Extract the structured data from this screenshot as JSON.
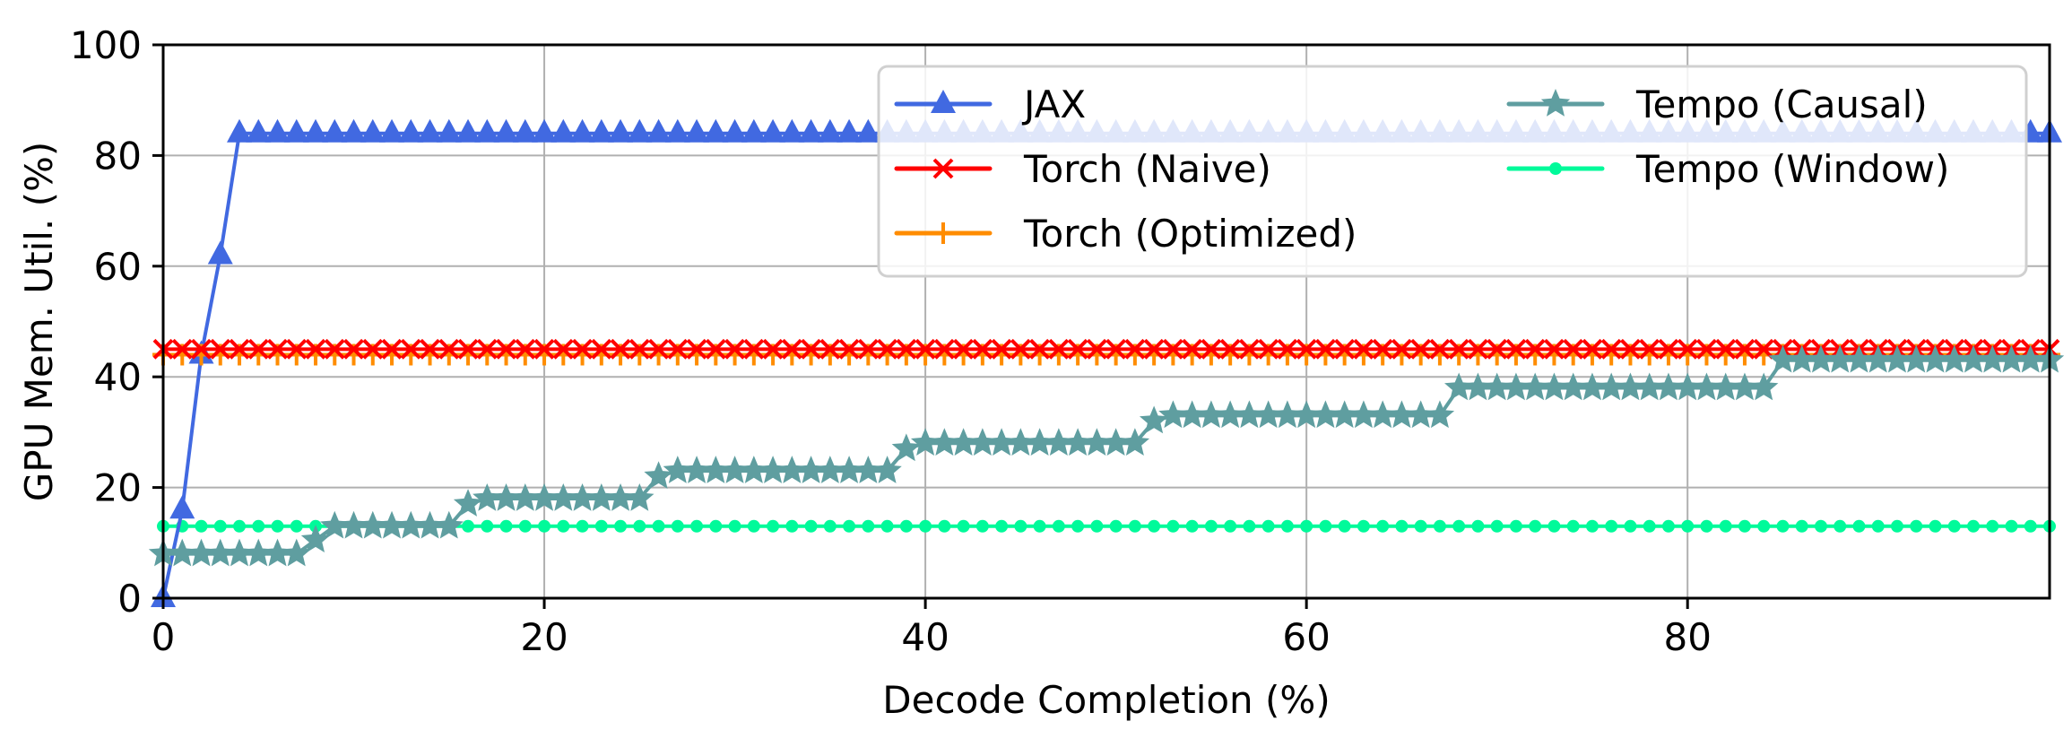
{
  "chart_data": {
    "type": "line",
    "title": "",
    "xlabel": "Decode Completion (%)",
    "ylabel": "GPU Mem. Util. (%)",
    "xlim": [
      0,
      99
    ],
    "ylim": [
      0,
      100
    ],
    "x_ticks": [
      0,
      20,
      40,
      60,
      80
    ],
    "y_ticks": [
      0,
      20,
      40,
      60,
      80,
      100
    ],
    "grid": true,
    "legend": {
      "placement": "top-right",
      "columns": 2
    },
    "series": [
      {
        "name": "JAX",
        "color": "#4169e1",
        "marker": "triangle-up",
        "points": [
          [
            0,
            0
          ],
          [
            1,
            16
          ],
          [
            2,
            44
          ],
          [
            3,
            62
          ],
          [
            4,
            84
          ],
          [
            99,
            84
          ]
        ],
        "marker_step": 1
      },
      {
        "name": "Torch (Naive)",
        "color": "#ff0000",
        "marker": "x",
        "points": [
          [
            0,
            45
          ],
          [
            99,
            45
          ]
        ],
        "marker_step": 1
      },
      {
        "name": "Torch (Optimized)",
        "color": "#ff8c00",
        "marker": "plus",
        "points": [
          [
            0,
            44
          ],
          [
            99,
            44
          ]
        ],
        "marker_step": 1
      },
      {
        "name": "Tempo (Causal)",
        "color": "#5f9ea0",
        "marker": "star",
        "points": [
          [
            0,
            8
          ],
          [
            7,
            8
          ],
          [
            9,
            13
          ],
          [
            15,
            13
          ],
          [
            16,
            17
          ],
          [
            17,
            18
          ],
          [
            25,
            18
          ],
          [
            26,
            22
          ],
          [
            27,
            23
          ],
          [
            38,
            23
          ],
          [
            39,
            27
          ],
          [
            40,
            28
          ],
          [
            51,
            28
          ],
          [
            52,
            32
          ],
          [
            53,
            33
          ],
          [
            67,
            33
          ],
          [
            68,
            38
          ],
          [
            84,
            38
          ],
          [
            85,
            43
          ],
          [
            99,
            43
          ]
        ],
        "marker_step": 1
      },
      {
        "name": "Tempo (Window)",
        "color": "#00fa9a",
        "marker": "circle",
        "points": [
          [
            0,
            13
          ],
          [
            99,
            13
          ]
        ],
        "marker_step": 1
      }
    ]
  }
}
